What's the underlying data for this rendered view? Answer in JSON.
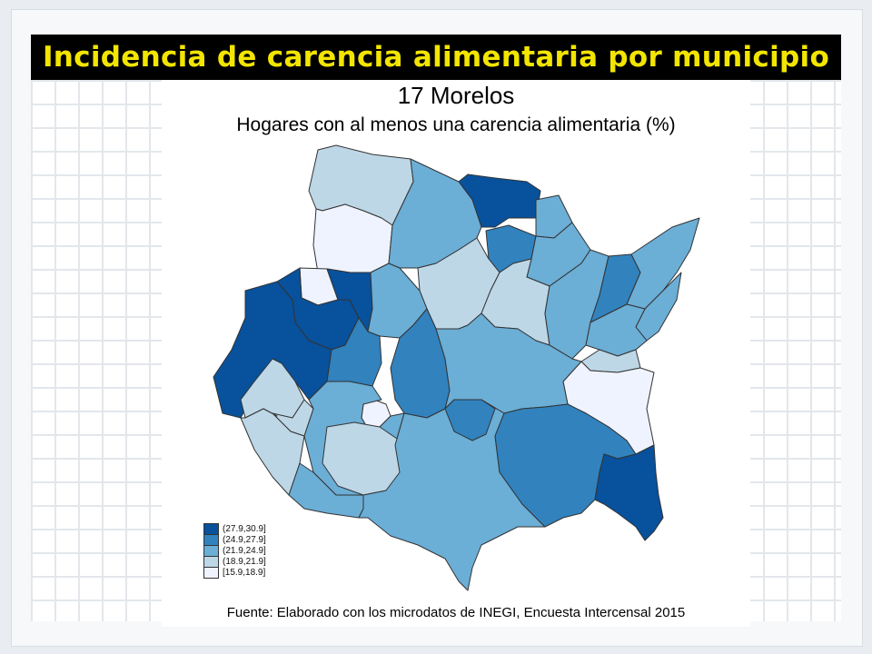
{
  "header": {
    "title": "Incidencia de carencia alimentaria por municipio"
  },
  "map": {
    "title": "17 Morelos",
    "subtitle": "Hogares con al menos una carencia alimentaria (%)",
    "source": "Fuente: Elaborado con los microdatos de INEGI, Encuesta Intercensal 2015"
  },
  "legend": {
    "items": [
      {
        "label": "(27.9,30.9]",
        "color": "#08519c"
      },
      {
        "label": "(24.9,27.9]",
        "color": "#3182bd"
      },
      {
        "label": "(21.9,24.9]",
        "color": "#6baed6"
      },
      {
        "label": "(18.9,21.9]",
        "color": "#bdd7e7"
      },
      {
        "label": "[15.9,18.9]",
        "color": "#eff3ff"
      }
    ]
  },
  "colors": {
    "title_bar_bg": "#000000",
    "title_text": "#f2e500",
    "border": "#333333"
  }
}
